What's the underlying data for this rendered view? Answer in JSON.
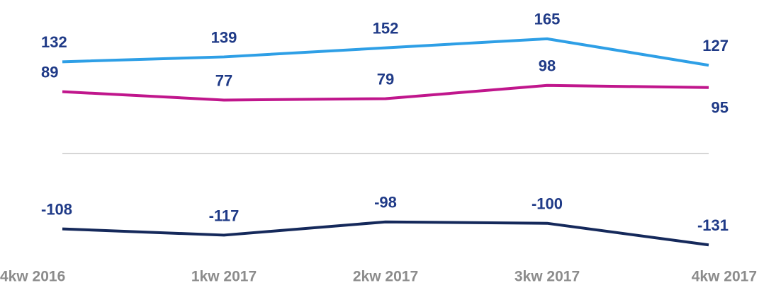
{
  "chart_data": {
    "type": "line",
    "categories": [
      "4kw 2016",
      "1kw 2017",
      "2kw 2017",
      "3kw 2017",
      "4kw 2017"
    ],
    "series": [
      {
        "name": null,
        "color": "#2e9fe6",
        "values": [
          132,
          139,
          152,
          165,
          127
        ]
      },
      {
        "name": null,
        "color": "#c0168c",
        "values": [
          89,
          77,
          79,
          98,
          95
        ]
      },
      {
        "name": null,
        "color": "#15295b",
        "values": [
          -108,
          -117,
          -98,
          -100,
          -131
        ]
      }
    ],
    "ylim": [
      -145,
      175
    ]
  }
}
